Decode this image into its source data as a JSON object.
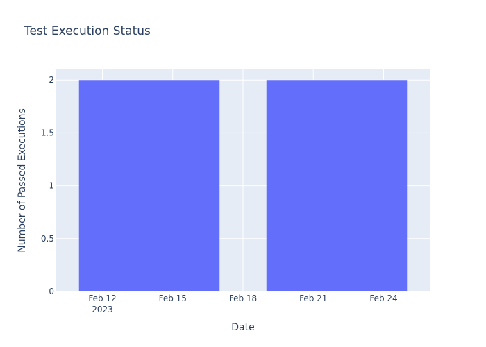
{
  "chart_data": {
    "type": "bar",
    "title": "Test Execution Status",
    "xlabel": "Date",
    "ylabel": "Number of Passed Executions",
    "x_type": "date",
    "xlim": [
      "2023-02-10",
      "2023-02-26"
    ],
    "ylim": [
      0,
      2.1
    ],
    "grid": true,
    "bars": [
      {
        "start": "2023-02-11",
        "end": "2023-02-17",
        "value": 2
      },
      {
        "start": "2023-02-19",
        "end": "2023-02-25",
        "value": 2
      }
    ],
    "x_ticks": [
      {
        "date": "2023-02-12",
        "label": "Feb 12",
        "sublabel": "2023"
      },
      {
        "date": "2023-02-15",
        "label": "Feb 15",
        "sublabel": ""
      },
      {
        "date": "2023-02-18",
        "label": "Feb 18",
        "sublabel": ""
      },
      {
        "date": "2023-02-21",
        "label": "Feb 21",
        "sublabel": ""
      },
      {
        "date": "2023-02-24",
        "label": "Feb 24",
        "sublabel": ""
      }
    ],
    "y_ticks": [
      {
        "value": 0,
        "label": "0"
      },
      {
        "value": 0.5,
        "label": "0.5"
      },
      {
        "value": 1,
        "label": "1"
      },
      {
        "value": 1.5,
        "label": "1.5"
      },
      {
        "value": 2,
        "label": "2"
      }
    ],
    "colors": {
      "bar": "#636efa",
      "plot_bg": "#e5ecf6",
      "grid": "#ffffff",
      "text": "#2a3f5f"
    }
  }
}
